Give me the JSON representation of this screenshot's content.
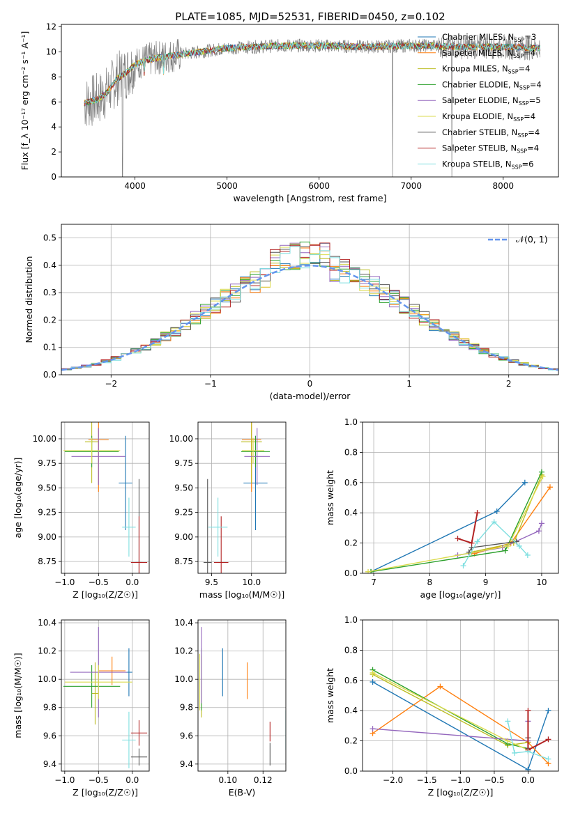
{
  "figure": {
    "title": "PLATE=1085, MJD=52531, FIBERID=0450, z=0.102"
  },
  "colors": {
    "chabrier_miles": "#1f77b4",
    "salpeter_miles": "#ff7f0e",
    "kroupa_miles": "#bcbd22",
    "chabrier_elodie": "#2ca02c",
    "salpeter_elodie": "#9467bd",
    "kroupa_elodie": "#dbdb4c",
    "chabrier_stelib": "#555555",
    "salpeter_stelib": "#b22222",
    "kroupa_stelib": "#7fdfe0",
    "spectrum_data": "#808080",
    "normal_curve": "#6495ed"
  },
  "chart_data": [
    {
      "id": "spectrum",
      "type": "line",
      "xlabel": "wavelength [Angstrom, rest frame]",
      "ylabel": "Flux [f_λ 10⁻¹⁷ erg cm⁻² s⁻¹ A⁻¹]",
      "xlim": [
        3200,
        8600
      ],
      "ylim": [
        0,
        12.2
      ],
      "xticks": [
        4000,
        5000,
        6000,
        7000,
        8000
      ],
      "yticks": [
        0,
        2,
        4,
        6,
        8,
        10,
        12
      ],
      "grid": false,
      "legend_position": "right",
      "legend": [
        {
          "name": "Chabrier MILES, N",
          "sub": "SSP",
          "suffix": "=3",
          "color_key": "chabrier_miles"
        },
        {
          "name": "Salpeter MILES, N",
          "sub": "SSP",
          "suffix": "=4",
          "color_key": "salpeter_miles"
        },
        {
          "name": "Kroupa MILES, N",
          "sub": "SSP",
          "suffix": "=4",
          "color_key": "kroupa_miles"
        },
        {
          "name": "Chabrier ELODIE, N",
          "sub": "SSP",
          "suffix": "=4",
          "color_key": "chabrier_elodie"
        },
        {
          "name": "Salpeter ELODIE, N",
          "sub": "SSP",
          "suffix": "=5",
          "color_key": "salpeter_elodie"
        },
        {
          "name": "Kroupa ELODIE, N",
          "sub": "SSP",
          "suffix": "=4",
          "color_key": "kroupa_elodie"
        },
        {
          "name": "Chabrier STELIB, N",
          "sub": "SSP",
          "suffix": "=4",
          "color_key": "chabrier_stelib"
        },
        {
          "name": "Salpeter STELIB, N",
          "sub": "SSP",
          "suffix": "=4",
          "color_key": "salpeter_stelib"
        },
        {
          "name": "Kroupa STELIB, N",
          "sub": "SSP",
          "suffix": "=6",
          "color_key": "kroupa_stelib"
        }
      ],
      "continuum": {
        "x": [
          3450,
          3600,
          3700,
          3800,
          3900,
          4000,
          4100,
          4300,
          4500,
          4800,
          5000,
          5300,
          5600,
          6000,
          6500,
          7000,
          7200,
          7500,
          8000,
          8400
        ],
        "y": [
          5.9,
          6.2,
          6.8,
          7.8,
          8.3,
          9.0,
          9.3,
          9.6,
          9.8,
          10.1,
          10.3,
          10.4,
          10.5,
          10.5,
          10.4,
          10.5,
          10.5,
          10.4,
          10.4,
          10.3
        ]
      }
    },
    {
      "id": "residuals",
      "type": "area",
      "xlabel": "(data-model)/error",
      "ylabel": "Normed distribution",
      "xlim": [
        -2.5,
        2.5
      ],
      "ylim": [
        0,
        0.55
      ],
      "xticks": [
        -2,
        -1,
        0,
        1,
        2
      ],
      "yticks": [
        0.0,
        0.1,
        0.2,
        0.3,
        0.4,
        0.5
      ],
      "grid": true,
      "legend_position": "top-right",
      "legend_label": "𝒩(0, 1)",
      "bin_width": 0.1
    },
    {
      "id": "age_vs_Z",
      "type": "scatter",
      "xlabel": "Z [log₁₀(Z/Z☉)]",
      "ylabel": "age  [log₁₀(age/yr)]",
      "xlim": [
        -1.05,
        0.25
      ],
      "ylim": [
        8.63,
        10.17
      ],
      "xticks": [
        -1.0,
        -0.5,
        0.0
      ],
      "yticks": [
        8.75,
        9.0,
        9.25,
        9.5,
        9.75,
        10.0
      ],
      "grid": true,
      "points": [
        {
          "color_key": "chabrier_miles",
          "x": -0.1,
          "xerr": 0.1,
          "y": 9.55,
          "yerr": 0.48
        },
        {
          "color_key": "salpeter_miles",
          "x": -0.5,
          "xerr": 0.15,
          "y": 9.99,
          "yerr": 0.53
        },
        {
          "color_key": "kroupa_miles",
          "x": -0.6,
          "xerr": 0.1,
          "y": 9.97,
          "yerr": 0.42
        },
        {
          "color_key": "chabrier_elodie",
          "x": -0.6,
          "xerr": 0.4,
          "y": 9.87,
          "yerr": 0.16
        },
        {
          "color_key": "salpeter_elodie",
          "x": -0.5,
          "xerr": 0.4,
          "y": 9.82,
          "yerr": 0.29
        },
        {
          "color_key": "kroupa_elodie",
          "x": -0.6,
          "xerr": 0.42,
          "y": 9.88,
          "yerr": 0.13
        },
        {
          "color_key": "chabrier_stelib",
          "x": 0.1,
          "xerr": 0.05,
          "y": 8.74,
          "yerr": 0.85
        },
        {
          "color_key": "salpeter_stelib",
          "x": 0.1,
          "xerr": 0.12,
          "y": 8.74,
          "yerr": 0.47
        },
        {
          "color_key": "kroupa_stelib",
          "x": -0.05,
          "xerr": 0.1,
          "y": 9.1,
          "yerr": 0.3
        }
      ]
    },
    {
      "id": "age_vs_mass",
      "type": "scatter",
      "xlabel": "mass [log₁₀(M/M☉)]",
      "ylabel": "",
      "xlim": [
        9.33,
        10.43
      ],
      "ylim": [
        8.63,
        10.17
      ],
      "xticks": [
        9.5,
        10.0
      ],
      "yticks": [
        8.75,
        9.0,
        9.25,
        9.5,
        9.75,
        10.0
      ],
      "grid": true,
      "points": [
        {
          "color_key": "chabrier_miles",
          "x": 10.05,
          "xerr": 0.15,
          "y": 9.55,
          "yerr": 0.48
        },
        {
          "color_key": "salpeter_miles",
          "x": 10.0,
          "xerr": 0.12,
          "y": 9.99,
          "yerr": 0.53
        },
        {
          "color_key": "kroupa_miles",
          "x": 10.0,
          "xerr": 0.13,
          "y": 9.97,
          "yerr": 0.42
        },
        {
          "color_key": "chabrier_elodie",
          "x": 10.05,
          "xerr": 0.18,
          "y": 9.87,
          "yerr": 0.16
        },
        {
          "color_key": "salpeter_elodie",
          "x": 10.07,
          "xerr": 0.16,
          "y": 9.82,
          "yerr": 0.29
        },
        {
          "color_key": "kroupa_elodie",
          "x": 10.02,
          "xerr": 0.14,
          "y": 9.88,
          "yerr": 0.13
        },
        {
          "color_key": "chabrier_stelib",
          "x": 9.45,
          "xerr": 0.05,
          "y": 8.74,
          "yerr": 0.85
        },
        {
          "color_key": "salpeter_stelib",
          "x": 9.62,
          "xerr": 0.09,
          "y": 8.74,
          "yerr": 0.47
        },
        {
          "color_key": "kroupa_stelib",
          "x": 9.58,
          "xerr": 0.12,
          "y": 9.1,
          "yerr": 0.3
        }
      ]
    },
    {
      "id": "weight_vs_age",
      "type": "line",
      "xlabel": "age  [log₁₀(age/yr)]",
      "ylabel": "mass weight",
      "xlim": [
        6.8,
        10.3
      ],
      "ylim": [
        0,
        1.0
      ],
      "xticks": [
        7,
        8,
        9,
        10
      ],
      "yticks": [
        0.0,
        0.2,
        0.4,
        0.6,
        0.8,
        1.0
      ],
      "grid": true,
      "series": [
        {
          "color_key": "chabrier_miles",
          "x": [
            6.95,
            9.2,
            9.7
          ],
          "y": [
            0.01,
            0.41,
            0.6
          ]
        },
        {
          "color_key": "salpeter_miles",
          "x": [
            8.8,
            9.45,
            10.15
          ],
          "y": [
            0.13,
            0.2,
            0.57
          ]
        },
        {
          "color_key": "kroupa_miles",
          "x": [
            8.75,
            9.5,
            10.0
          ],
          "y": [
            0.14,
            0.2,
            0.65
          ]
        },
        {
          "color_key": "chabrier_elodie",
          "x": [
            6.95,
            9.35,
            10.0
          ],
          "y": [
            0.01,
            0.15,
            0.67
          ]
        },
        {
          "color_key": "salpeter_elodie",
          "x": [
            8.5,
            9.3,
            9.95,
            10.0
          ],
          "y": [
            0.12,
            0.17,
            0.28,
            0.33
          ]
        },
        {
          "color_key": "kroupa_elodie",
          "x": [
            6.9,
            9.4,
            10.02
          ],
          "y": [
            0.01,
            0.18,
            0.64
          ]
        },
        {
          "color_key": "chabrier_stelib",
          "x": [
            8.7,
            8.75,
            9.55
          ],
          "y": [
            0.14,
            0.17,
            0.21
          ]
        },
        {
          "color_key": "salpeter_stelib",
          "x": [
            8.5,
            8.75,
            8.85,
            8.85
          ],
          "y": [
            0.23,
            0.2,
            0.4,
            0.4
          ]
        },
        {
          "color_key": "kroupa_stelib",
          "x": [
            8.6,
            8.85,
            9.15,
            9.6,
            9.75
          ],
          "y": [
            0.05,
            0.21,
            0.34,
            0.18,
            0.12
          ]
        }
      ]
    },
    {
      "id": "mass_vs_Z",
      "type": "scatter",
      "xlabel": "Z [log₁₀(Z/Z☉)]",
      "ylabel": "mass [log₁₀(M/M☉)]",
      "xlim": [
        -1.05,
        0.25
      ],
      "ylim": [
        9.35,
        10.42
      ],
      "xticks": [
        -1.0,
        -0.5,
        0.0
      ],
      "yticks": [
        9.4,
        9.6,
        9.8,
        10.0,
        10.2,
        10.4
      ],
      "grid": true,
      "points": [
        {
          "color_key": "chabrier_miles",
          "x": -0.05,
          "xerr": 0.05,
          "y": 10.05,
          "yerr": 0.17
        },
        {
          "color_key": "salpeter_miles",
          "x": -0.3,
          "xerr": 0.2,
          "y": 10.06,
          "yerr": 0.1
        },
        {
          "color_key": "kroupa_miles",
          "x": -0.55,
          "xerr": 0.05,
          "y": 9.9,
          "yerr": 0.22
        },
        {
          "color_key": "chabrier_elodie",
          "x": -0.6,
          "xerr": 0.42,
          "y": 9.95,
          "yerr": 0.15
        },
        {
          "color_key": "salpeter_elodie",
          "x": -0.5,
          "xerr": 0.42,
          "y": 10.05,
          "yerr": 0.32
        },
        {
          "color_key": "kroupa_elodie",
          "x": -0.5,
          "xerr": 0.5,
          "y": 9.98,
          "yerr": 0.12
        },
        {
          "color_key": "chabrier_stelib",
          "x": 0.1,
          "xerr": 0.12,
          "y": 9.45,
          "yerr": 0.06
        },
        {
          "color_key": "salpeter_stelib",
          "x": 0.1,
          "xerr": 0.12,
          "y": 9.62,
          "yerr": 0.09
        },
        {
          "color_key": "kroupa_stelib",
          "x": -0.05,
          "xerr": 0.1,
          "y": 9.57,
          "yerr": 0.2
        }
      ]
    },
    {
      "id": "mass_vs_EBV",
      "type": "scatter",
      "xlabel": "E(B-V)",
      "ylabel": "",
      "xlim": [
        0.083,
        0.133
      ],
      "ylim": [
        9.35,
        10.42
      ],
      "xticks": [
        0.1,
        0.12
      ],
      "yticks": [
        9.4,
        9.6,
        9.8,
        10.0,
        10.2,
        10.4
      ],
      "grid": true,
      "points": [
        {
          "color_key": "chabrier_miles",
          "x": 0.097,
          "xerr": 0,
          "y": 10.05,
          "yerr": 0.17
        },
        {
          "color_key": "salpeter_miles",
          "x": 0.111,
          "xerr": 0,
          "y": 9.99,
          "yerr": 0.13
        },
        {
          "color_key": "kroupa_miles",
          "x": 0.085,
          "xerr": 0,
          "y": 9.95,
          "yerr": 0.22
        },
        {
          "color_key": "chabrier_elodie",
          "x": 0.085,
          "xerr": 0,
          "y": 10.0,
          "yerr": 0.22
        },
        {
          "color_key": "salpeter_elodie",
          "x": 0.085,
          "xerr": 0,
          "y": 10.1,
          "yerr": 0.27
        },
        {
          "color_key": "kroupa_elodie",
          "x": 0.084,
          "xerr": 0,
          "y": 9.98,
          "yerr": 0.2
        },
        {
          "color_key": "chabrier_stelib",
          "x": 0.124,
          "xerr": 0,
          "y": 9.47,
          "yerr": 0.08
        },
        {
          "color_key": "salpeter_stelib",
          "x": 0.124,
          "xerr": 0,
          "y": 9.63,
          "yerr": 0.07
        },
        {
          "color_key": "kroupa_stelib",
          "x": 0.133,
          "xerr": 0,
          "y": 9.64,
          "yerr": 0.14
        }
      ]
    },
    {
      "id": "weight_vs_Z",
      "type": "line",
      "xlabel": "Z [log₁₀(Z/Z☉)]",
      "ylabel": "mass weight",
      "xlim": [
        -2.45,
        0.45
      ],
      "ylim": [
        0,
        1.0
      ],
      "xticks": [
        -2.0,
        -1.5,
        -1.0,
        -0.5,
        0.0
      ],
      "yticks": [
        0.0,
        0.2,
        0.4,
        0.6,
        0.8,
        1.0
      ],
      "grid": true,
      "series": [
        {
          "color_key": "chabrier_miles",
          "x": [
            -2.3,
            0.0,
            0.3
          ],
          "y": [
            0.59,
            0.01,
            0.4
          ]
        },
        {
          "color_key": "salpeter_miles",
          "x": [
            -2.3,
            -1.3,
            0.0,
            0.3
          ],
          "y": [
            0.25,
            0.56,
            0.19,
            0.05
          ]
        },
        {
          "color_key": "kroupa_miles",
          "x": [
            -2.3,
            -0.3,
            0.0
          ],
          "y": [
            0.64,
            0.17,
            0.19
          ]
        },
        {
          "color_key": "chabrier_elodie",
          "x": [
            -2.3,
            -0.3,
            0.0
          ],
          "y": [
            0.67,
            0.18,
            0.15
          ]
        },
        {
          "color_key": "salpeter_elodie",
          "x": [
            -2.3,
            0.0,
            0.0
          ],
          "y": [
            0.28,
            0.2,
            0.33
          ]
        },
        {
          "color_key": "kroupa_elodie",
          "x": [
            -2.3,
            -0.3,
            0.0
          ],
          "y": [
            0.65,
            0.2,
            0.14
          ]
        },
        {
          "color_key": "chabrier_stelib",
          "x": [
            0.0,
            0.0
          ],
          "y": [
            0.22,
            0.15
          ]
        },
        {
          "color_key": "salpeter_stelib",
          "x": [
            0.0,
            0.0,
            0.3
          ],
          "y": [
            0.4,
            0.14,
            0.21
          ]
        },
        {
          "color_key": "kroupa_stelib",
          "x": [
            -0.3,
            -0.2,
            0.0,
            0.3
          ],
          "y": [
            0.33,
            0.12,
            0.13,
            0.08
          ]
        }
      ]
    }
  ]
}
